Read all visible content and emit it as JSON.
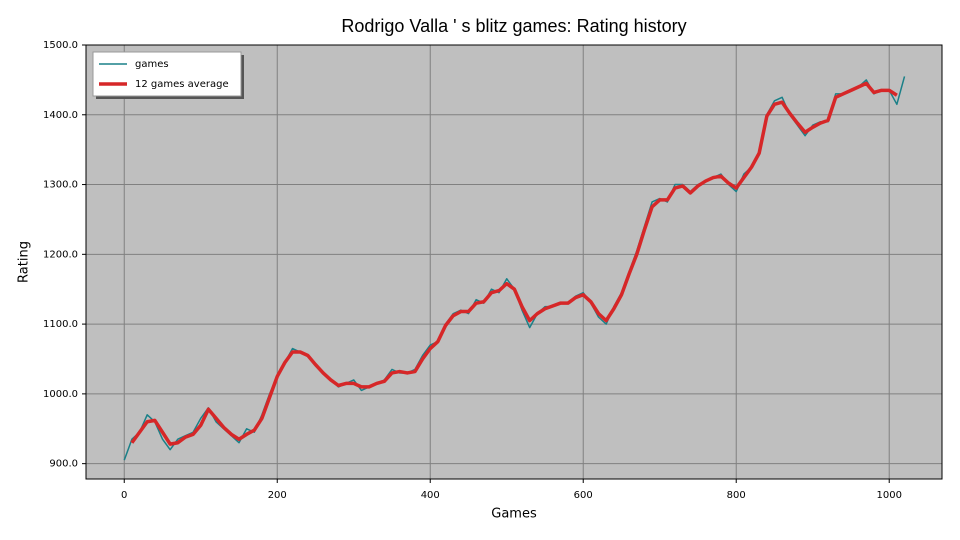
{
  "chart_data": {
    "type": "line",
    "title": "Rodrigo Valla ' s blitz games: Rating history",
    "xlabel": "Games",
    "ylabel": "Rating",
    "x": [
      0,
      10,
      20,
      30,
      40,
      50,
      60,
      70,
      80,
      90,
      100,
      110,
      120,
      130,
      140,
      150,
      160,
      170,
      180,
      190,
      200,
      210,
      220,
      230,
      240,
      250,
      260,
      270,
      280,
      290,
      300,
      310,
      320,
      330,
      340,
      350,
      360,
      370,
      380,
      390,
      400,
      410,
      420,
      430,
      440,
      450,
      460,
      470,
      480,
      490,
      500,
      510,
      520,
      530,
      540,
      550,
      560,
      570,
      580,
      590,
      600,
      610,
      620,
      630,
      640,
      650,
      660,
      670,
      680,
      690,
      700,
      710,
      720,
      730,
      740,
      750,
      760,
      770,
      780,
      790,
      800,
      810,
      820,
      830,
      840,
      850,
      860,
      870,
      880,
      890,
      900,
      910,
      920,
      930,
      940,
      950,
      960,
      970,
      980,
      990,
      1000,
      1010,
      1020
    ],
    "series": [
      {
        "name": "games",
        "color": "#1a8088",
        "width": 1.5,
        "values": [
          905,
          935,
          945,
          970,
          960,
          935,
          920,
          935,
          940,
          945,
          965,
          980,
          960,
          950,
          940,
          930,
          950,
          945,
          970,
          1000,
          1025,
          1045,
          1065,
          1060,
          1055,
          1040,
          1030,
          1020,
          1010,
          1015,
          1020,
          1005,
          1010,
          1015,
          1020,
          1035,
          1030,
          1030,
          1035,
          1055,
          1070,
          1075,
          1100,
          1115,
          1120,
          1115,
          1135,
          1130,
          1150,
          1145,
          1165,
          1150,
          1120,
          1095,
          1115,
          1125,
          1125,
          1130,
          1130,
          1140,
          1145,
          1130,
          1110,
          1100,
          1125,
          1145,
          1175,
          1205,
          1240,
          1275,
          1280,
          1275,
          1300,
          1300,
          1290,
          1300,
          1305,
          1310,
          1315,
          1300,
          1290,
          1315,
          1325,
          1345,
          1400,
          1420,
          1425,
          1400,
          1385,
          1370,
          1385,
          1390,
          1390,
          1430,
          1430,
          1435,
          1440,
          1450,
          1430,
          1435,
          1435,
          1415,
          1455
        ]
      },
      {
        "name": "12 games average",
        "color": "#d62728",
        "width": 3.5,
        "values": [
          null,
          930,
          945,
          960,
          962,
          945,
          928,
          930,
          938,
          942,
          955,
          978,
          965,
          952,
          942,
          935,
          942,
          948,
          965,
          995,
          1025,
          1045,
          1060,
          1060,
          1055,
          1042,
          1030,
          1020,
          1012,
          1015,
          1015,
          1010,
          1010,
          1015,
          1018,
          1030,
          1032,
          1030,
          1032,
          1050,
          1065,
          1075,
          1098,
          1112,
          1118,
          1118,
          1130,
          1132,
          1145,
          1148,
          1158,
          1150,
          1125,
          1105,
          1115,
          1122,
          1126,
          1130,
          1130,
          1138,
          1142,
          1132,
          1115,
          1105,
          1122,
          1142,
          1172,
          1200,
          1235,
          1268,
          1278,
          1278,
          1295,
          1298,
          1288,
          1298,
          1305,
          1310,
          1312,
          1302,
          1295,
          1310,
          1325,
          1345,
          1398,
          1415,
          1418,
          1402,
          1388,
          1375,
          1382,
          1388,
          1392,
          1425,
          1430,
          1435,
          1440,
          1445,
          1432,
          1435,
          1435,
          1428,
          null
        ]
      }
    ],
    "xlim": [
      -50,
      1069
    ],
    "ylim": [
      878,
      1500
    ],
    "xticks": [
      0,
      200,
      400,
      600,
      800,
      1000
    ],
    "yticks": [
      {
        "value": 900,
        "label": "900.0"
      },
      {
        "value": 1000,
        "label": "1000.0"
      },
      {
        "value": 1100,
        "label": "1100.0"
      },
      {
        "value": 1200,
        "label": "1200.0"
      },
      {
        "value": 1300,
        "label": "1300.0"
      },
      {
        "value": 1400,
        "label": "1400.0"
      },
      {
        "value": 1500,
        "label": "1500.0"
      }
    ],
    "grid": true,
    "legend": "upper left"
  }
}
